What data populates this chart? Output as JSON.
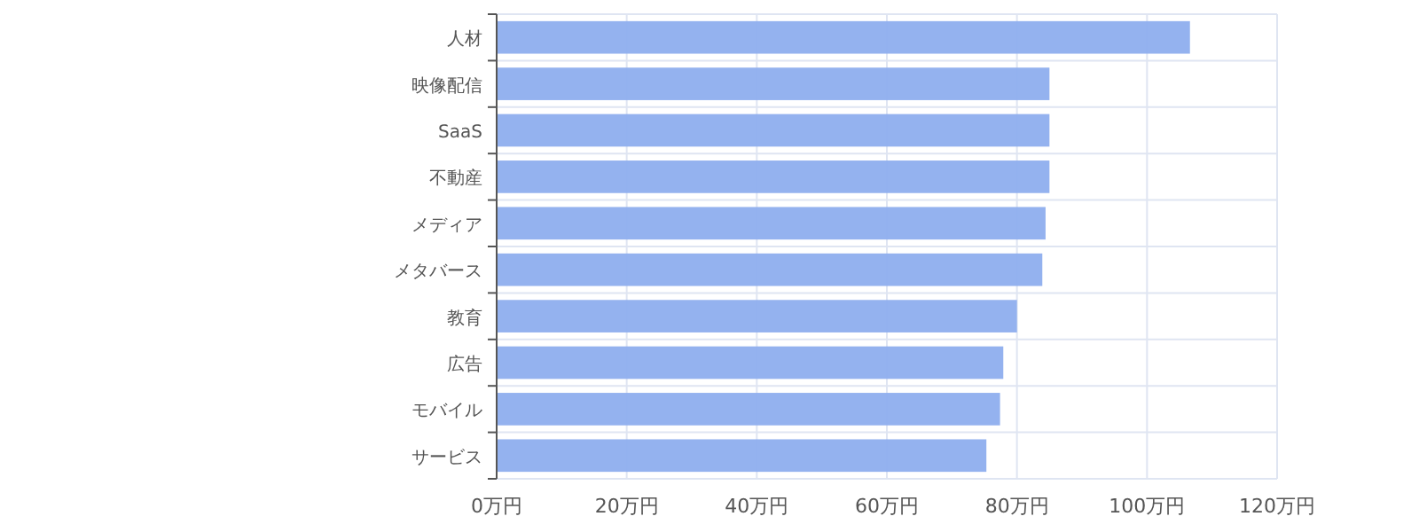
{
  "chart_data": {
    "type": "bar",
    "orientation": "horizontal",
    "categories": [
      "人材",
      "映像配信",
      "SaaS",
      "不動産",
      "メディア",
      "メタバース",
      "教育",
      "広告",
      "モバイル",
      "サービス"
    ],
    "values": [
      106.6,
      85,
      85,
      85,
      84.4,
      83.9,
      80,
      77.9,
      77.4,
      75.3
    ],
    "color": "#8eaeee",
    "xlim": [
      0,
      120
    ],
    "xticks": [
      {
        "value": 0,
        "label": "0万円"
      },
      {
        "value": 20,
        "label": "20万円"
      },
      {
        "value": 40,
        "label": "40万円"
      },
      {
        "value": 60,
        "label": "60万円"
      },
      {
        "value": 80,
        "label": "80万円"
      },
      {
        "value": 100,
        "label": "100万円"
      },
      {
        "value": 120,
        "label": "120万円"
      }
    ],
    "grid": true
  }
}
